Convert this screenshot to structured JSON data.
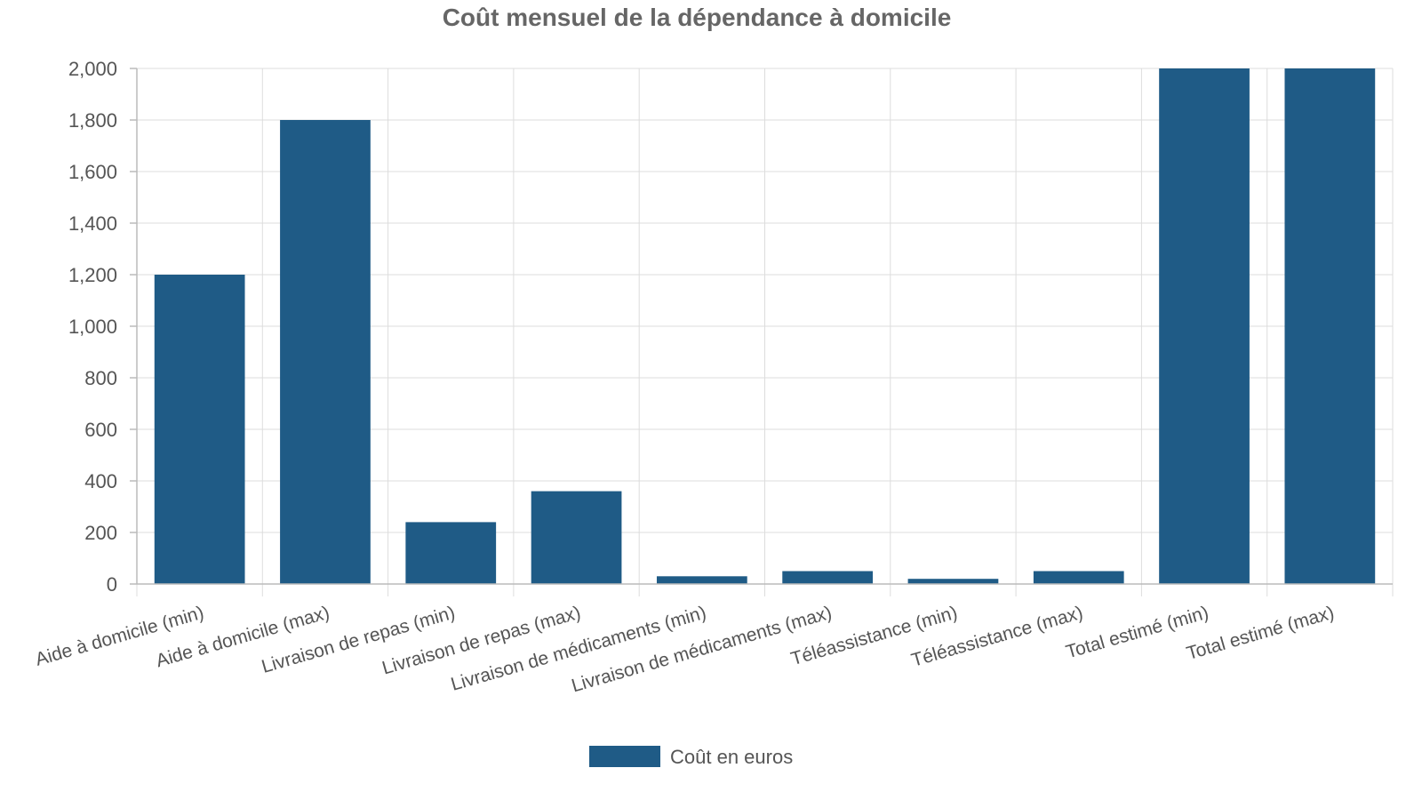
{
  "chart_data": {
    "type": "bar",
    "title": "Coût mensuel de la dépendance à domicile",
    "xlabel": "",
    "ylabel": "",
    "categories": [
      "Aide à domicile (min)",
      "Aide à domicile (max)",
      "Livraison de repas (min)",
      "Livraison de repas (max)",
      "Livraison de médicaments (min)",
      "Livraison de médicaments (max)",
      "Téléassistance (min)",
      "Téléassistance (max)",
      "Total estimé (min)",
      "Total estimé (max)"
    ],
    "series": [
      {
        "name": "Coût en euros",
        "color": "#1f5b86",
        "values": [
          1200,
          1800,
          240,
          360,
          30,
          50,
          20,
          50,
          2000,
          2000
        ]
      }
    ],
    "ylim": [
      0,
      2000
    ],
    "yticks": [
      0,
      200,
      400,
      600,
      800,
      1000,
      1200,
      1400,
      1600,
      1800,
      2000
    ],
    "ytick_labels": [
      "0",
      "200",
      "400",
      "600",
      "800",
      "1,000",
      "1,200",
      "1,400",
      "1,600",
      "1,800",
      "2,000"
    ],
    "grid": true,
    "legend_position": "bottom-center"
  }
}
